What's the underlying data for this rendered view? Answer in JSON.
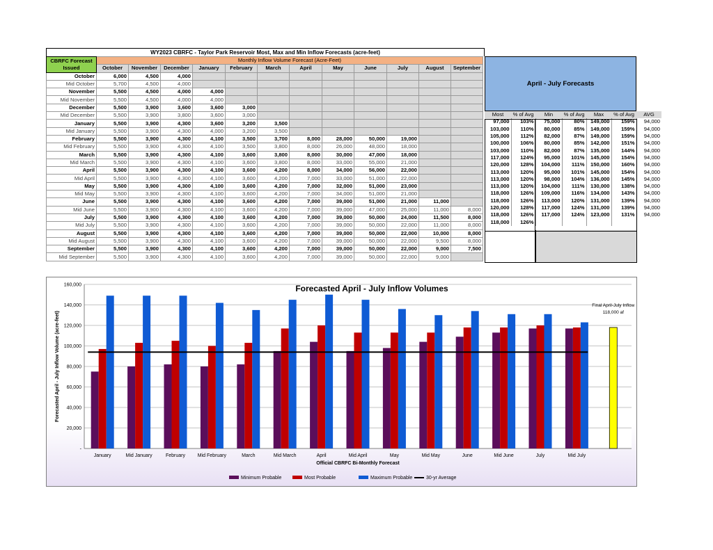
{
  "table": {
    "title": "WY2023 CBRFC - Taylor Park Reservoir Most, Max and Min Inflow Forecasts (acre-feet)",
    "corner_label": "CBRFC Forecast Issued",
    "group_header": "Monthly Inflow Volume Forecast (Acre-Feet)",
    "columns": [
      "October",
      "November",
      "December",
      "January",
      "February",
      "March",
      "April",
      "May",
      "June",
      "July",
      "August",
      "September"
    ],
    "rows": [
      {
        "label": "October",
        "values": [
          "6,000",
          "4,500",
          "4,000",
          "",
          "",
          "",
          "",
          "",
          "",
          "",
          "",
          ""
        ]
      },
      {
        "label": "Mid October",
        "values": [
          "5,700",
          "4,500",
          "4,000",
          "",
          "",
          "",
          "",
          "",
          "",
          "",
          "",
          ""
        ]
      },
      {
        "label": "November",
        "values": [
          "5,500",
          "4,500",
          "4,000",
          "4,000",
          "",
          "",
          "",
          "",
          "",
          "",
          "",
          ""
        ]
      },
      {
        "label": "Mid November",
        "values": [
          "5,500",
          "4,500",
          "4,000",
          "4,000",
          "",
          "",
          "",
          "",
          "",
          "",
          "",
          ""
        ]
      },
      {
        "label": "December",
        "values": [
          "5,500",
          "3,900",
          "3,600",
          "3,600",
          "3,000",
          "",
          "",
          "",
          "",
          "",
          "",
          ""
        ]
      },
      {
        "label": "Mid December",
        "values": [
          "5,500",
          "3,900",
          "3,800",
          "3,600",
          "3,000",
          "",
          "",
          "",
          "",
          "",
          "",
          ""
        ]
      },
      {
        "label": "January",
        "values": [
          "5,500",
          "3,900",
          "4,300",
          "3,600",
          "3,200",
          "3,500",
          "",
          "",
          "",
          "",
          "",
          ""
        ]
      },
      {
        "label": "Mid January",
        "values": [
          "5,500",
          "3,900",
          "4,300",
          "4,000",
          "3,200",
          "3,500",
          "",
          "",
          "",
          "",
          "",
          ""
        ]
      },
      {
        "label": "February",
        "values": [
          "5,500",
          "3,900",
          "4,300",
          "4,100",
          "3,500",
          "3,700",
          "8,000",
          "28,000",
          "50,000",
          "19,000",
          "",
          ""
        ]
      },
      {
        "label": "Mid February",
        "values": [
          "5,500",
          "3,900",
          "4,300",
          "4,100",
          "3,500",
          "3,800",
          "8,000",
          "26,000",
          "48,000",
          "18,000",
          "",
          ""
        ]
      },
      {
        "label": "March",
        "values": [
          "5,500",
          "3,900",
          "4,300",
          "4,100",
          "3,600",
          "3,800",
          "8,000",
          "30,000",
          "47,000",
          "18,000",
          "",
          ""
        ]
      },
      {
        "label": "Mid March",
        "values": [
          "5,500",
          "3,900",
          "4,300",
          "4,100",
          "3,600",
          "3,800",
          "8,000",
          "33,000",
          "55,000",
          "21,000",
          "",
          ""
        ]
      },
      {
        "label": "April",
        "values": [
          "5,500",
          "3,900",
          "4,300",
          "4,100",
          "3,600",
          "4,200",
          "8,000",
          "34,000",
          "56,000",
          "22,000",
          "",
          ""
        ]
      },
      {
        "label": "Mid April",
        "values": [
          "5,500",
          "3,900",
          "4,300",
          "4,100",
          "3,600",
          "4,200",
          "7,000",
          "33,000",
          "51,000",
          "22,000",
          "",
          ""
        ]
      },
      {
        "label": "May",
        "values": [
          "5,500",
          "3,900",
          "4,300",
          "4,100",
          "3,600",
          "4,200",
          "7,000",
          "32,000",
          "51,000",
          "23,000",
          "",
          ""
        ]
      },
      {
        "label": "Mid May",
        "values": [
          "5,500",
          "3,900",
          "4,300",
          "4,100",
          "3,600",
          "4,200",
          "7,000",
          "34,000",
          "51,000",
          "21,000",
          "",
          ""
        ]
      },
      {
        "label": "June",
        "values": [
          "5,500",
          "3,900",
          "4,300",
          "4,100",
          "3,600",
          "4,200",
          "7,000",
          "39,000",
          "51,000",
          "21,000",
          "11,000",
          ""
        ]
      },
      {
        "label": "Mid June",
        "values": [
          "5,500",
          "3,900",
          "4,300",
          "4,100",
          "3,600",
          "4,200",
          "7,000",
          "39,000",
          "47,000",
          "25,000",
          "11,000",
          "8,000"
        ]
      },
      {
        "label": "July",
        "values": [
          "5,500",
          "3,900",
          "4,300",
          "4,100",
          "3,600",
          "4,200",
          "7,000",
          "39,000",
          "50,000",
          "24,000",
          "11,500",
          "8,000"
        ]
      },
      {
        "label": "Mid July",
        "values": [
          "5,500",
          "3,900",
          "4,300",
          "4,100",
          "3,600",
          "4,200",
          "7,000",
          "39,000",
          "50,000",
          "22,000",
          "11,000",
          "8,000"
        ]
      },
      {
        "label": "August",
        "values": [
          "5,500",
          "3,900",
          "4,300",
          "4,100",
          "3,600",
          "4,200",
          "7,000",
          "39,000",
          "50,000",
          "22,000",
          "10,000",
          "8,000"
        ]
      },
      {
        "label": "Mid August",
        "values": [
          "5,500",
          "3,900",
          "4,300",
          "4,100",
          "3,600",
          "4,200",
          "7,000",
          "39,000",
          "50,000",
          "22,000",
          "9,500",
          "8,000"
        ]
      },
      {
        "label": "September",
        "values": [
          "5,500",
          "3,900",
          "4,300",
          "4,100",
          "3,600",
          "4,200",
          "7,000",
          "39,000",
          "50,000",
          "22,000",
          "9,000",
          "7,500"
        ]
      },
      {
        "label": "Mid September",
        "values": [
          "5,500",
          "3,900",
          "4,300",
          "4,100",
          "3,600",
          "4,200",
          "7,000",
          "39,000",
          "50,000",
          "22,000",
          "9,000",
          ""
        ]
      }
    ]
  },
  "aj": {
    "title": "April - July Forecasts",
    "headers": [
      "Most",
      "% of Avg",
      "Min",
      "% of Avg",
      "Max",
      "% of Avg",
      "AVG"
    ],
    "rows": [
      [
        "97,000",
        "103%",
        "75,000",
        "80%",
        "149,000",
        "159%",
        "94,000"
      ],
      [
        "103,000",
        "110%",
        "80,000",
        "85%",
        "149,000",
        "159%",
        "94,000"
      ],
      [
        "105,000",
        "112%",
        "82,000",
        "87%",
        "149,000",
        "159%",
        "94,000"
      ],
      [
        "100,000",
        "106%",
        "80,000",
        "85%",
        "142,000",
        "151%",
        "94,000"
      ],
      [
        "103,000",
        "110%",
        "82,000",
        "87%",
        "135,000",
        "144%",
        "94,000"
      ],
      [
        "117,000",
        "124%",
        "95,000",
        "101%",
        "145,000",
        "154%",
        "94,000"
      ],
      [
        "120,000",
        "128%",
        "104,000",
        "111%",
        "150,000",
        "160%",
        "94,000"
      ],
      [
        "113,000",
        "120%",
        "95,000",
        "101%",
        "145,000",
        "154%",
        "94,000"
      ],
      [
        "113,000",
        "120%",
        "98,000",
        "104%",
        "136,000",
        "145%",
        "94,000"
      ],
      [
        "113,000",
        "120%",
        "104,000",
        "111%",
        "130,000",
        "138%",
        "94,000"
      ],
      [
        "118,000",
        "126%",
        "109,000",
        "116%",
        "134,000",
        "143%",
        "94,000"
      ],
      [
        "118,000",
        "126%",
        "113,000",
        "120%",
        "131,000",
        "139%",
        "94,000"
      ],
      [
        "120,000",
        "128%",
        "117,000",
        "124%",
        "131,000",
        "139%",
        "94,000"
      ],
      [
        "118,000",
        "126%",
        "117,000",
        "124%",
        "123,000",
        "131%",
        "94,000"
      ],
      [
        "118,000",
        "126%",
        "",
        "",
        "",
        "",
        ""
      ]
    ]
  },
  "chart_data": {
    "type": "bar",
    "title": "Forecasted April - July Inflow Volumes",
    "xlabel": "Official CBRFC Bi-Monthly Forecast",
    "ylabel": "Forecasted April - July Inflow Volume (acre-feet)",
    "ylim": [
      0,
      160000
    ],
    "yticks": [
      "-",
      "20,000",
      "40,000",
      "60,000",
      "80,000",
      "100,000",
      "120,000",
      "140,000",
      "160,000"
    ],
    "categories": [
      "January",
      "Mid January",
      "February",
      "Mid February",
      "March",
      "Mid March",
      "April",
      "Mid April",
      "May",
      "Mid May",
      "June",
      "Mid June",
      "July",
      "Mid July"
    ],
    "series": [
      {
        "name": "Minimum Probable",
        "color": "#5b0e5b",
        "values": [
          75000,
          80000,
          82000,
          80000,
          82000,
          95000,
          104000,
          95000,
          98000,
          104000,
          109000,
          113000,
          117000,
          117000
        ]
      },
      {
        "name": "Most Probable",
        "color": "#c00000",
        "values": [
          97000,
          103000,
          105000,
          100000,
          103000,
          117000,
          120000,
          113000,
          113000,
          113000,
          118000,
          118000,
          120000,
          118000
        ]
      },
      {
        "name": "Maximum Probable",
        "color": "#0f5bd4",
        "values": [
          149000,
          149000,
          149000,
          142000,
          135000,
          145000,
          150000,
          145000,
          136000,
          130000,
          134000,
          131000,
          131000,
          123000
        ]
      }
    ],
    "average": {
      "name": "30-yr Average",
      "value": 94000,
      "color": "#000000"
    },
    "final": {
      "label": "Final April-July Inflow",
      "value_label": "118,000  af",
      "value": 118000,
      "color": "#ffff00"
    },
    "legend_position": "bottom",
    "grid": true
  }
}
